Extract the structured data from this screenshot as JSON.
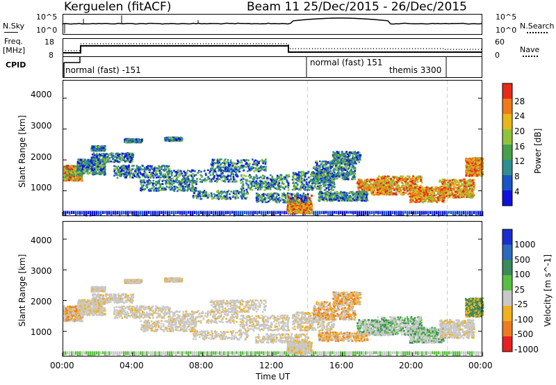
{
  "header": {
    "station": "Kerguelen (fitACF)",
    "beam_range": "Beam 11  25/Dec/2015 - 26/Dec/2015"
  },
  "top_panels": {
    "nsky_label": "N.Sky",
    "nsky_tick_top": "10^5",
    "nsky_tick_bottom": "10^0",
    "nsearch_label": "N.Search",
    "nsearch_tick_top": "10^5",
    "nsearch_tick_bottom": "10^0",
    "freq_label": "Freq.",
    "freq_unit": "[MHz]",
    "freq_tick_top": "18",
    "freq_tick_bottom": "8",
    "nave_label": "Nave",
    "nave_tick_top": "60",
    "nave_tick_bottom": "0",
    "cpid_label": "CPID",
    "cpid_segments": [
      {
        "label": "normal (fast) -151",
        "start_hour": 0
      },
      {
        "label": "normal (fast) 151",
        "start_hour": 14
      },
      {
        "label": "themis 3300",
        "start_hour": 18
      }
    ]
  },
  "chart_data": [
    {
      "type": "heatmap",
      "title": "",
      "xlabel": "Time UT",
      "ylabel": "Slant Range [km]",
      "x_ticks": [
        "00:00",
        "04:00",
        "08:00",
        "12:00",
        "16:00",
        "20:00",
        "00:00"
      ],
      "xlim_hours": [
        0,
        24
      ],
      "y_ticks": [
        "1000",
        "2000",
        "3000",
        "4000"
      ],
      "y_tick_values": [
        1000,
        2000,
        3000,
        4000
      ],
      "ylim": [
        180,
        4590
      ],
      "colorbar": {
        "label": "Power [dB]",
        "ticks": [
          "4",
          "8",
          "12",
          "16",
          "20",
          "24",
          "28"
        ],
        "colors": [
          "#1010e0",
          "#1a55c8",
          "#2f8f8f",
          "#47a04a",
          "#8fc43a",
          "#e8b81a",
          "#f07a18",
          "#e82a18"
        ]
      },
      "vertical_markers_hours": [
        14,
        22
      ]
    },
    {
      "type": "heatmap",
      "title": "",
      "xlabel": "Time UT",
      "ylabel": "Slant Range [km]",
      "x_ticks": [
        "00:00",
        "04:00",
        "08:00",
        "12:00",
        "16:00",
        "20:00",
        "00:00"
      ],
      "xlim_hours": [
        0,
        24
      ],
      "y_ticks": [
        "1000",
        "2000",
        "3000",
        "4000"
      ],
      "y_tick_values": [
        1000,
        2000,
        3000,
        4000
      ],
      "ylim": [
        180,
        4590
      ],
      "colorbar": {
        "label": "Velocity [m s^-1]",
        "ticks": [
          "1000",
          "500",
          "100",
          "25",
          "-25",
          "-100",
          "-500",
          "-1000"
        ],
        "colors": [
          "#1a2ed0",
          "#2a6ac0",
          "#3a8a5a",
          "#58c040",
          "#c8c8c8",
          "#f0b020",
          "#f07a20",
          "#e82020"
        ]
      },
      "vertical_markers_hours": [
        14,
        22
      ]
    }
  ]
}
